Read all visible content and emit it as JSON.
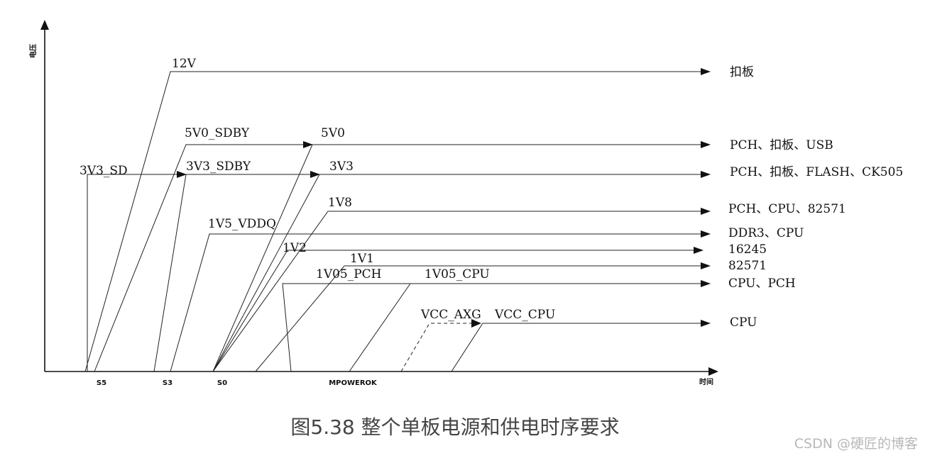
{
  "axes": {
    "y_label": "电压",
    "x_label": "时间",
    "ticks": [
      "S5",
      "S3",
      "S0",
      "MPOWEROK"
    ]
  },
  "rails": [
    {
      "id": "12v",
      "label": "12V",
      "dest": "扣板"
    },
    {
      "id": "5v0-sdby",
      "label": "5V0_SDBY"
    },
    {
      "id": "5v0",
      "label": "5V0",
      "dest": "PCH、扣板、USB"
    },
    {
      "id": "3v3-sd",
      "label": "3V3_SD"
    },
    {
      "id": "3v3-sdby",
      "label": "3V3_SDBY"
    },
    {
      "id": "3v3",
      "label": "3V3",
      "dest": "PCH、扣板、FLASH、CK505"
    },
    {
      "id": "1v8",
      "label": "1V8",
      "dest": "PCH、CPU、82571"
    },
    {
      "id": "1v5-vddq",
      "label": "1V5_VDDQ",
      "dest": "DDR3、CPU"
    },
    {
      "id": "1v2",
      "label": "1V2",
      "dest": "16245"
    },
    {
      "id": "1v1",
      "label": "1V1",
      "dest": "82571"
    },
    {
      "id": "1v05-pch",
      "label": "1V05_PCH",
      "dest": "CPU、PCH"
    },
    {
      "id": "1v05-cpu",
      "label": "1V05_CPU"
    },
    {
      "id": "vcc-axg",
      "label": "VCC_AXG"
    },
    {
      "id": "vcc-cpu",
      "label": "VCC_CPU",
      "dest": "CPU"
    }
  ],
  "caption": "图5.38 整个单板电源和供电时序要求",
  "watermark": "CSDN @硬匠的博客"
}
